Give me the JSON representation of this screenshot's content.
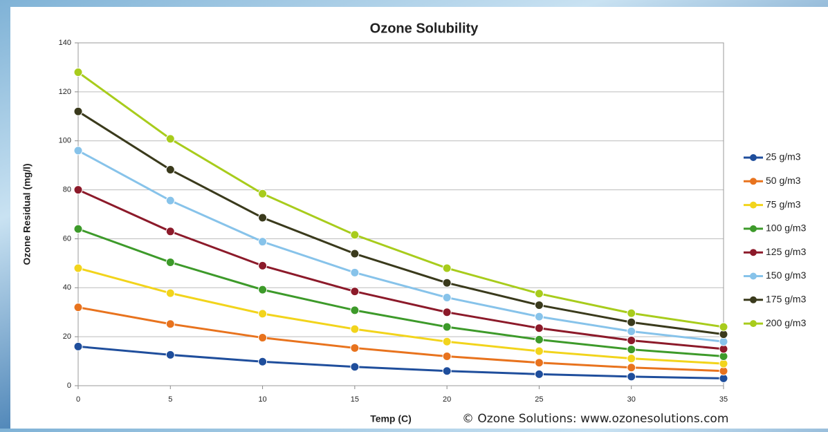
{
  "chart_data": {
    "type": "line",
    "title": "Ozone Solubility",
    "xlabel": "Temp (C)",
    "ylabel": "Ozone Residual (mg/l)",
    "annotation": "© Ozone Solutions: www.ozonesolutions.com",
    "x": [
      0,
      5,
      10,
      15,
      20,
      25,
      30,
      35
    ],
    "xlim": [
      0,
      35
    ],
    "xticks": [
      0,
      5,
      10,
      15,
      20,
      25,
      30,
      35
    ],
    "ylim": [
      0,
      140
    ],
    "yticks": [
      0,
      20,
      40,
      60,
      80,
      100,
      120,
      140
    ],
    "grid": true,
    "legend": "right",
    "series": [
      {
        "name": "25 g/m3",
        "color": "#1f4e9c",
        "values": [
          16,
          12.6,
          9.8,
          7.7,
          6,
          4.7,
          3.7,
          3
        ]
      },
      {
        "name": "50 g/m3",
        "color": "#e8731e",
        "values": [
          32,
          25.2,
          19.6,
          15.4,
          12,
          9.4,
          7.4,
          6
        ]
      },
      {
        "name": "75 g/m3",
        "color": "#f2d41c",
        "values": [
          48,
          37.8,
          29.4,
          23.1,
          18,
          14.1,
          11.1,
          9
        ]
      },
      {
        "name": "100 g/m3",
        "color": "#3d9a2a",
        "values": [
          64,
          50.4,
          39.2,
          30.8,
          24,
          18.8,
          14.8,
          12
        ]
      },
      {
        "name": "125 g/m3",
        "color": "#8c1a2a",
        "values": [
          80,
          63,
          49,
          38.5,
          30,
          23.5,
          18.5,
          15
        ]
      },
      {
        "name": "150 g/m3",
        "color": "#87c3ea",
        "values": [
          96,
          75.6,
          58.8,
          46.2,
          36,
          28.2,
          22.2,
          18
        ]
      },
      {
        "name": "175 g/m3",
        "color": "#3a3a1c",
        "values": [
          112,
          88.2,
          68.6,
          53.9,
          42,
          32.9,
          25.9,
          21
        ]
      },
      {
        "name": "200 g/m3",
        "color": "#a8cc1c",
        "values": [
          128,
          100.8,
          78.4,
          61.6,
          48,
          37.6,
          29.6,
          24
        ]
      }
    ]
  }
}
